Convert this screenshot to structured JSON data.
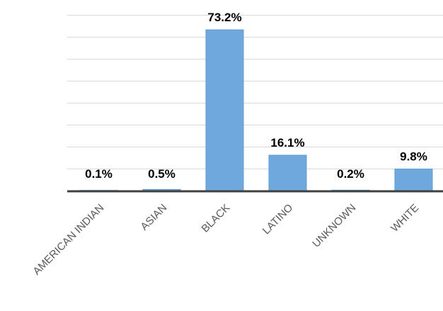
{
  "chart_data": {
    "type": "bar",
    "title": "",
    "xlabel": "",
    "ylabel": "",
    "categories": [
      "AMERICAN INDIAN",
      "ASIAN",
      "BLACK",
      "LATINO",
      "UNKNOWN",
      "WHITE"
    ],
    "values": [
      0.1,
      0.5,
      73.2,
      16.1,
      0.2,
      9.8
    ],
    "data_labels": [
      "0.1%",
      "0.5%",
      "73.2%",
      "16.1%",
      "0.2%",
      "9.8%"
    ],
    "ylim": [
      0,
      80
    ],
    "grid": true,
    "y_tick_labels_visible": false,
    "bar_color": "#6fa8dc",
    "bar_outline_color": "#5b9bd5",
    "axis_color": "#404040",
    "grid_color": "#d9d9d9"
  }
}
